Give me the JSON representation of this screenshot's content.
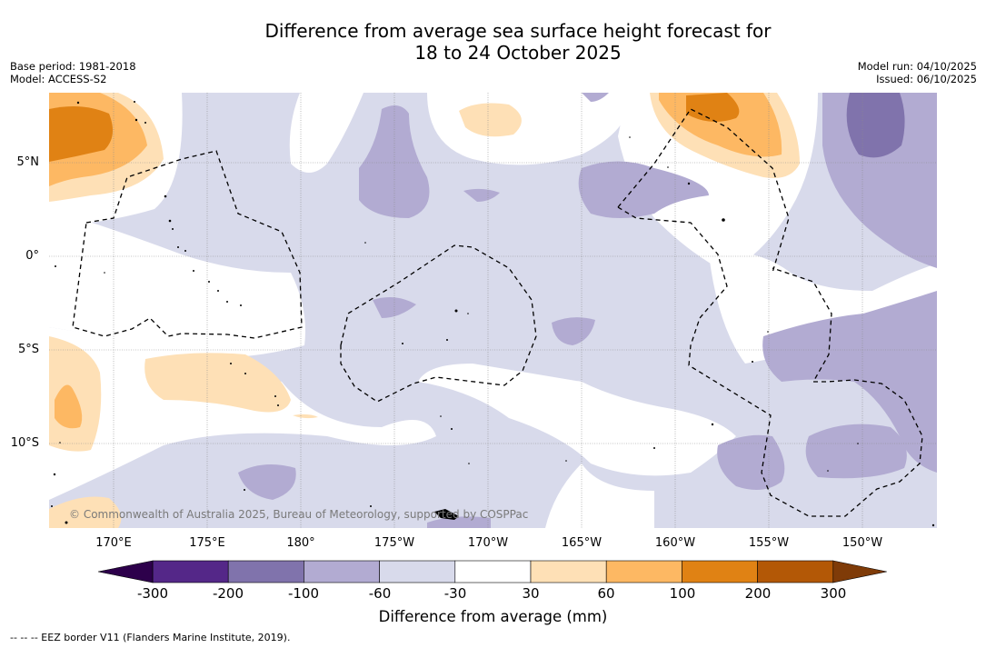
{
  "title": {
    "line1": "Difference from average sea surface height forecast for",
    "line2": "18 to 24 October 2025"
  },
  "meta": {
    "base_period": "Base period: 1981-2018",
    "model": "Model: ACCESS-S2",
    "model_run": "Model run: 04/10/2025",
    "issued": "Issued: 06/10/2025"
  },
  "axes": {
    "lat_labels": [
      "5°N",
      "0°",
      "5°S",
      "10°S"
    ],
    "lon_labels": [
      "170°E",
      "175°E",
      "180°",
      "175°W",
      "170°W",
      "165°W",
      "160°W",
      "155°W",
      "150°W"
    ]
  },
  "copyright": "© Commonwealth of Australia 2025, Bureau of Meteorology, supported by COSPPac",
  "colorbar": {
    "ticks": [
      "-300",
      "-200",
      "-100",
      "-60",
      "-30",
      "30",
      "60",
      "100",
      "200",
      "300"
    ],
    "colors": [
      "#542788",
      "#8073ac",
      "#b2abd2",
      "#d8daeb",
      "#ffffff",
      "#fee0b6",
      "#fdb863",
      "#e08214",
      "#b35806"
    ],
    "under_color": "#2d004b",
    "over_color": "#7f3b08",
    "title": "Difference from average (mm)"
  },
  "footnote": "--  --  -- EEZ border V11 (Flanders Marine Institute, 2019).",
  "colors": {
    "neg_light": "#d8daeb",
    "neg_mid": "#b2abd2",
    "neg_dark": "#8073ac",
    "pos_light": "#fee0b6",
    "pos_mid": "#fdb863",
    "pos_dark": "#e08214"
  }
}
